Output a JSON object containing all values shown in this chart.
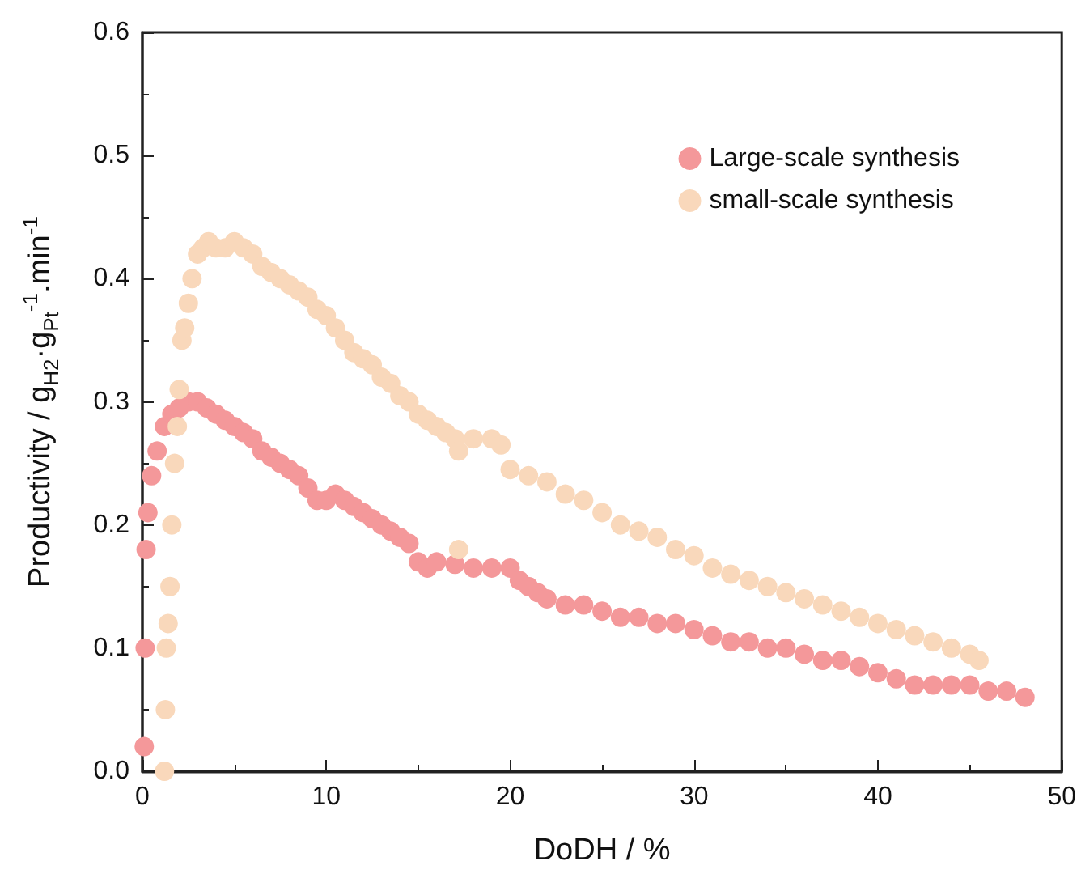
{
  "chart_data": {
    "type": "scatter",
    "xlabel": "DoDH / %",
    "ylabel": "Productivity / g$_{H2}$·g$_{Pt}$$^{-1}$.min$^{-1}$",
    "xlim": [
      0,
      50
    ],
    "xticks": [
      0,
      10,
      20,
      30,
      40,
      50
    ],
    "ylim": [
      0,
      0.6
    ],
    "yticks": [
      {
        "value": 0,
        "label": "0.0"
      },
      0.1,
      0.2,
      0.3,
      0.4,
      0.5,
      0.6
    ],
    "legend": "top right",
    "grid": false,
    "marker": "circle",
    "series": [
      {
        "name": "Large-scale synthesis",
        "color": "#f4989a",
        "x": [
          0.1,
          0.15,
          0.2,
          0.3,
          0.5,
          0.8,
          1.2,
          1.6,
          2,
          2.5,
          3,
          3.5,
          4,
          4.5,
          5,
          5.5,
          6,
          6.5,
          7,
          7.5,
          8,
          8.5,
          9,
          9.5,
          10,
          10.5,
          11,
          11.5,
          12,
          12.5,
          13,
          13.5,
          14,
          14.5,
          15,
          15.5,
          16,
          17,
          18,
          19,
          20,
          20.5,
          21,
          21.5,
          22,
          23,
          24,
          25,
          26,
          27,
          28,
          29,
          30,
          31,
          32,
          33,
          34,
          35,
          36,
          37,
          38,
          39,
          40,
          41,
          42,
          43,
          44,
          45,
          46,
          47,
          48
        ],
        "values": [
          0.02,
          0.1,
          0.18,
          0.21,
          0.24,
          0.26,
          0.28,
          0.29,
          0.295,
          0.3,
          0.3,
          0.295,
          0.29,
          0.285,
          0.28,
          0.275,
          0.27,
          0.26,
          0.255,
          0.25,
          0.245,
          0.24,
          0.23,
          0.22,
          0.22,
          0.225,
          0.22,
          0.215,
          0.21,
          0.205,
          0.2,
          0.195,
          0.19,
          0.185,
          0.17,
          0.165,
          0.17,
          0.168,
          0.165,
          0.165,
          0.165,
          0.155,
          0.15,
          0.145,
          0.14,
          0.135,
          0.135,
          0.13,
          0.125,
          0.125,
          0.12,
          0.12,
          0.115,
          0.11,
          0.105,
          0.105,
          0.1,
          0.1,
          0.095,
          0.09,
          0.09,
          0.085,
          0.08,
          0.075,
          0.07,
          0.07,
          0.07,
          0.07,
          0.065,
          0.065,
          0.06
        ]
      },
      {
        "name": "small-scale synthesis",
        "color": "#f9d8bb",
        "x": [
          1.2,
          1.25,
          1.3,
          1.4,
          1.5,
          1.6,
          1.75,
          1.9,
          2,
          2.15,
          2.3,
          2.5,
          2.7,
          3,
          3.3,
          3.6,
          4,
          4.5,
          5,
          5.5,
          6,
          6.5,
          7,
          7.5,
          8,
          8.5,
          9,
          9.5,
          10,
          10.5,
          11,
          11.5,
          12,
          12.5,
          13,
          13.5,
          14,
          14.5,
          15,
          15.5,
          16,
          16.5,
          17,
          17.2,
          17.2,
          18,
          19,
          19.5,
          20,
          21,
          22,
          23,
          24,
          25,
          26,
          27,
          28,
          29,
          30,
          31,
          32,
          33,
          34,
          35,
          36,
          37,
          38,
          39,
          40,
          41,
          42,
          43,
          44,
          45,
          45.5
        ],
        "values": [
          0.0,
          0.05,
          0.1,
          0.12,
          0.15,
          0.2,
          0.25,
          0.28,
          0.31,
          0.35,
          0.36,
          0.38,
          0.4,
          0.42,
          0.425,
          0.43,
          0.425,
          0.425,
          0.43,
          0.425,
          0.42,
          0.41,
          0.405,
          0.4,
          0.395,
          0.39,
          0.385,
          0.375,
          0.37,
          0.36,
          0.35,
          0.34,
          0.335,
          0.33,
          0.32,
          0.315,
          0.305,
          0.3,
          0.29,
          0.285,
          0.28,
          0.275,
          0.27,
          0.26,
          0.18,
          0.27,
          0.27,
          0.265,
          0.245,
          0.24,
          0.235,
          0.225,
          0.22,
          0.21,
          0.2,
          0.195,
          0.19,
          0.18,
          0.175,
          0.165,
          0.16,
          0.155,
          0.15,
          0.145,
          0.14,
          0.135,
          0.13,
          0.125,
          0.12,
          0.115,
          0.11,
          0.105,
          0.1,
          0.095,
          0.09
        ]
      }
    ]
  }
}
